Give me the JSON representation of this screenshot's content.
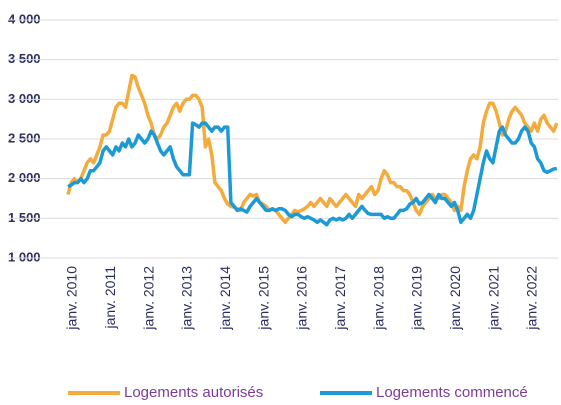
{
  "chart_data": {
    "type": "line",
    "categories": [
      "janv. 2010",
      null,
      null,
      null,
      null,
      null,
      null,
      null,
      null,
      null,
      null,
      null,
      "janv. 2011",
      null,
      null,
      null,
      null,
      null,
      null,
      null,
      null,
      null,
      null,
      null,
      "janv. 2012",
      null,
      null,
      null,
      null,
      null,
      null,
      null,
      null,
      null,
      null,
      null,
      "janv. 2013",
      null,
      null,
      null,
      null,
      null,
      null,
      null,
      null,
      null,
      null,
      null,
      "janv. 2014",
      null,
      null,
      null,
      null,
      null,
      null,
      null,
      null,
      null,
      null,
      null,
      "janv. 2015",
      null,
      null,
      null,
      null,
      null,
      null,
      null,
      null,
      null,
      null,
      null,
      "janv. 2016",
      null,
      null,
      null,
      null,
      null,
      null,
      null,
      null,
      null,
      null,
      null,
      "janv. 2017",
      null,
      null,
      null,
      null,
      null,
      null,
      null,
      null,
      null,
      null,
      null,
      "janv. 2018",
      null,
      null,
      null,
      null,
      null,
      null,
      null,
      null,
      null,
      null,
      null,
      "janv. 2019",
      null,
      null,
      null,
      null,
      null,
      null,
      null,
      null,
      null,
      null,
      null,
      "janv. 2020",
      null,
      null,
      null,
      null,
      null,
      null,
      null,
      null,
      null,
      null,
      null,
      "janv. 2021",
      null,
      null,
      null,
      null,
      null,
      null,
      null,
      null,
      null,
      null,
      null,
      "janv. 2022",
      null,
      null,
      null,
      null,
      null,
      null,
      null,
      null,
      null
    ],
    "series": [
      {
        "name": "Logements autorisés",
        "color": "#f5aa3c",
        "values": [
          1800,
          1950,
          2000,
          1950,
          2000,
          2100,
          2200,
          2250,
          2200,
          2300,
          2400,
          2550,
          2550,
          2600,
          2750,
          2900,
          2950,
          2950,
          2900,
          3100,
          3300,
          3280,
          3150,
          3050,
          2950,
          2800,
          2700,
          2550,
          2500,
          2550,
          2650,
          2700,
          2800,
          2900,
          2950,
          2850,
          2950,
          3000,
          3000,
          3050,
          3050,
          3000,
          2900,
          2400,
          2500,
          2300,
          1950,
          1900,
          1850,
          1750,
          1680,
          1650,
          1640,
          1620,
          1600,
          1700,
          1750,
          1800,
          1780,
          1800,
          1700,
          1680,
          1650,
          1600,
          1620,
          1600,
          1550,
          1500,
          1450,
          1500,
          1550,
          1600,
          1580,
          1600,
          1620,
          1650,
          1700,
          1650,
          1700,
          1750,
          1700,
          1650,
          1750,
          1700,
          1650,
          1700,
          1750,
          1800,
          1750,
          1700,
          1650,
          1800,
          1750,
          1800,
          1850,
          1900,
          1800,
          1850,
          2000,
          2100,
          2050,
          1950,
          1950,
          1900,
          1900,
          1850,
          1850,
          1800,
          1700,
          1600,
          1550,
          1650,
          1700,
          1750,
          1800,
          1750,
          1750,
          1800,
          1800,
          1750,
          1700,
          1600,
          1650,
          1600,
          1900,
          2100,
          2250,
          2300,
          2250,
          2400,
          2700,
          2850,
          2950,
          2950,
          2850,
          2700,
          2550,
          2600,
          2750,
          2850,
          2900,
          2850,
          2800,
          2700,
          2650,
          2600,
          2700,
          2600,
          2750,
          2800,
          2700,
          2650,
          2600,
          2700
        ]
      },
      {
        "name": "Logements commencé",
        "color": "#1b9ad6",
        "values": [
          1900,
          1920,
          1950,
          1950,
          2000,
          1950,
          2000,
          2100,
          2100,
          2150,
          2200,
          2350,
          2400,
          2350,
          2300,
          2400,
          2350,
          2450,
          2400,
          2500,
          2400,
          2450,
          2550,
          2500,
          2450,
          2500,
          2600,
          2550,
          2450,
          2350,
          2300,
          2350,
          2400,
          2250,
          2150,
          2100,
          2050,
          2050,
          2050,
          2700,
          2680,
          2650,
          2700,
          2700,
          2650,
          2600,
          2650,
          2650,
          2600,
          2650,
          2650,
          1700,
          1650,
          1600,
          1620,
          1600,
          1580,
          1650,
          1700,
          1750,
          1700,
          1650,
          1600,
          1600,
          1620,
          1600,
          1620,
          1620,
          1600,
          1550,
          1520,
          1550,
          1550,
          1520,
          1500,
          1520,
          1500,
          1480,
          1450,
          1480,
          1450,
          1420,
          1480,
          1500,
          1480,
          1500,
          1480,
          1500,
          1550,
          1500,
          1550,
          1600,
          1650,
          1600,
          1560,
          1550,
          1550,
          1550,
          1550,
          1500,
          1520,
          1500,
          1500,
          1550,
          1600,
          1600,
          1620,
          1680,
          1700,
          1750,
          1680,
          1700,
          1750,
          1800,
          1750,
          1700,
          1800,
          1750,
          1750,
          1700,
          1650,
          1700,
          1600,
          1450,
          1500,
          1550,
          1500,
          1600,
          1800,
          2000,
          2200,
          2350,
          2250,
          2200,
          2400,
          2600,
          2650,
          2550,
          2500,
          2450,
          2450,
          2500,
          2600,
          2650,
          2600,
          2450,
          2400,
          2250,
          2200,
          2100,
          2080,
          2100,
          2120,
          2130
        ]
      }
    ],
    "ylim": [
      1000,
      4000
    ],
    "yticks": [
      {
        "value": 1000,
        "label": "1 000"
      },
      {
        "value": 1500,
        "label": "1 500"
      },
      {
        "value": 2000,
        "label": "2 000"
      },
      {
        "value": 2500,
        "label": "2 500"
      },
      {
        "value": 3000,
        "label": "3 000"
      },
      {
        "value": 3500,
        "label": "3 500"
      },
      {
        "value": 4000,
        "label": "4 000"
      }
    ],
    "grid": true,
    "legend": "bottom"
  }
}
